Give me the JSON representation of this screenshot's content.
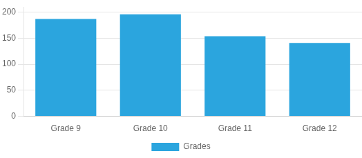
{
  "chart_data": {
    "type": "bar",
    "categories": [
      "Grade 9",
      "Grade 10",
      "Grade 11",
      "Grade 12"
    ],
    "series": [
      {
        "name": "Grades",
        "color": "#2ba5de",
        "values": [
          187,
          196,
          154,
          141
        ]
      }
    ],
    "ylim": [
      0,
      210
    ],
    "yticks": [
      0,
      50,
      100,
      150,
      200
    ],
    "grid": true,
    "legend": "bottom"
  }
}
